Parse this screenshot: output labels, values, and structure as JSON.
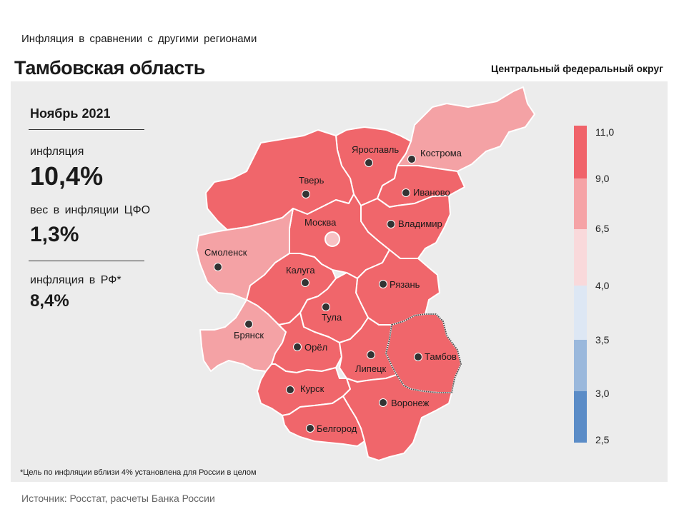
{
  "header": {
    "subtitle": "Инфляция в сравнении с другими регионами",
    "title": "Тамбовская область",
    "district": "Центральный федеральный округ"
  },
  "stats": {
    "period": "Ноябрь 2021",
    "inflation_label": "инфляция",
    "inflation_value": "10,4%",
    "weight_label": "вес в инфляции ЦФО",
    "weight_value": "1,3%",
    "rf_label": "инфляция в РФ*",
    "rf_value": "8,4%"
  },
  "footnote": "*Цель по инфляции вблизи 4% установлена для России в целом",
  "source": "Источник: Росстат, расчеты Банка России",
  "legend": {
    "ticks": [
      "11,0",
      "9,0",
      "6,5",
      "4,0",
      "3,5",
      "3,0",
      "2,5"
    ],
    "colors": [
      "#f0636a",
      "#f5a3a6",
      "#f9d9db",
      "#dde7f4",
      "#9ab8dc",
      "#5b8cc7"
    ]
  },
  "colors": {
    "high": "#f0666b",
    "medium": "#f4a2a5",
    "highlight_border": "#555555",
    "background": "#ececec"
  },
  "regions": [
    {
      "name": "Ярославль",
      "category": "high"
    },
    {
      "name": "Кострома",
      "category": "medium"
    },
    {
      "name": "Тверь",
      "category": "high"
    },
    {
      "name": "Иваново",
      "category": "high"
    },
    {
      "name": "Москва",
      "category": "high"
    },
    {
      "name": "Владимир",
      "category": "high"
    },
    {
      "name": "Смоленск",
      "category": "medium"
    },
    {
      "name": "Калуга",
      "category": "high"
    },
    {
      "name": "Рязань",
      "category": "high"
    },
    {
      "name": "Тула",
      "category": "high"
    },
    {
      "name": "Брянск",
      "category": "medium"
    },
    {
      "name": "Орёл",
      "category": "high"
    },
    {
      "name": "Липецк",
      "category": "high"
    },
    {
      "name": "Тамбов",
      "category": "high"
    },
    {
      "name": "Курск",
      "category": "high"
    },
    {
      "name": "Воронеж",
      "category": "high"
    },
    {
      "name": "Белгород",
      "category": "high"
    }
  ]
}
